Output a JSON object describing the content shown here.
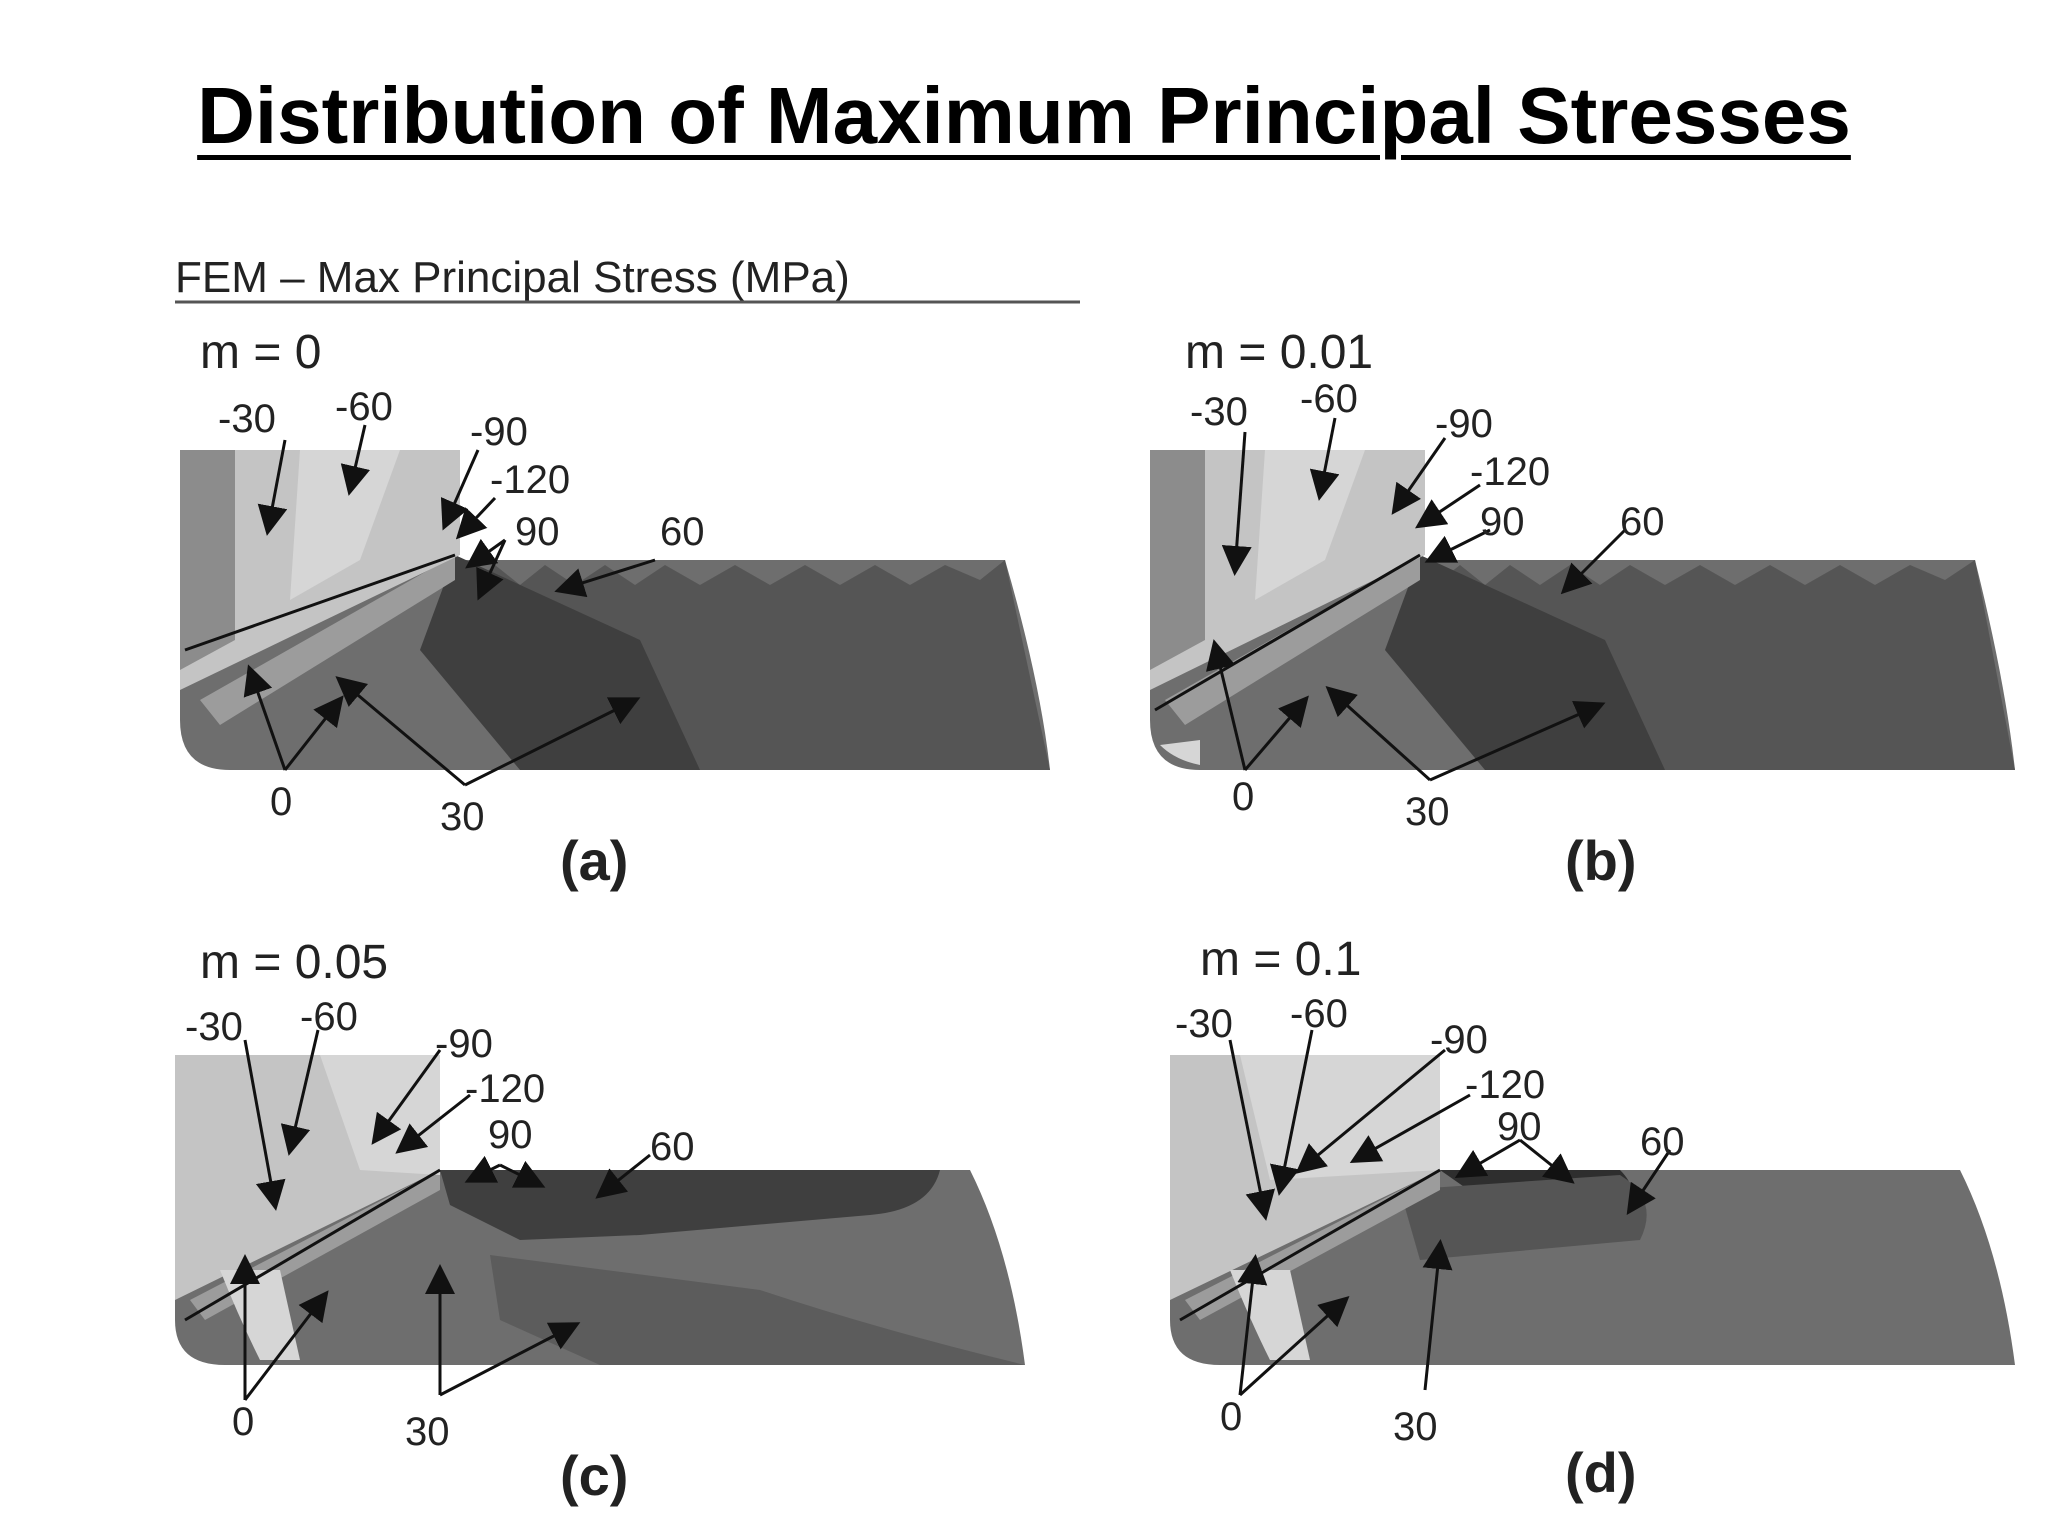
{
  "title": "Distribution of Maximum Principal Stresses",
  "figure": {
    "header": "FEM – Max Principal Stress (MPa)",
    "panels": [
      {
        "id": "a",
        "m_label": "m = 0",
        "caption": "(a)",
        "contour_labels": [
          "-30",
          "-60",
          "-90",
          "-120",
          "90",
          "60",
          "0",
          "30"
        ]
      },
      {
        "id": "b",
        "m_label": "m = 0.01",
        "caption": "(b)",
        "contour_labels": [
          "-30",
          "-60",
          "-90",
          "-120",
          "90",
          "60",
          "0",
          "30"
        ]
      },
      {
        "id": "c",
        "m_label": "m = 0.05",
        "caption": "(c)",
        "contour_labels": [
          "-30",
          "-60",
          "-90",
          "-120",
          "90",
          "60",
          "0",
          "30"
        ]
      },
      {
        "id": "d",
        "m_label": "m = 0.1",
        "caption": "(d)",
        "contour_labels": [
          "-30",
          "-60",
          "-90",
          "-120",
          "90",
          "60",
          "0",
          "30"
        ]
      }
    ]
  },
  "colors": {
    "tool": "#c4c4c4",
    "chip": "#6e6e6e",
    "dark_zone": "#3f3f3f",
    "light_zone": "#d6d6d6"
  }
}
